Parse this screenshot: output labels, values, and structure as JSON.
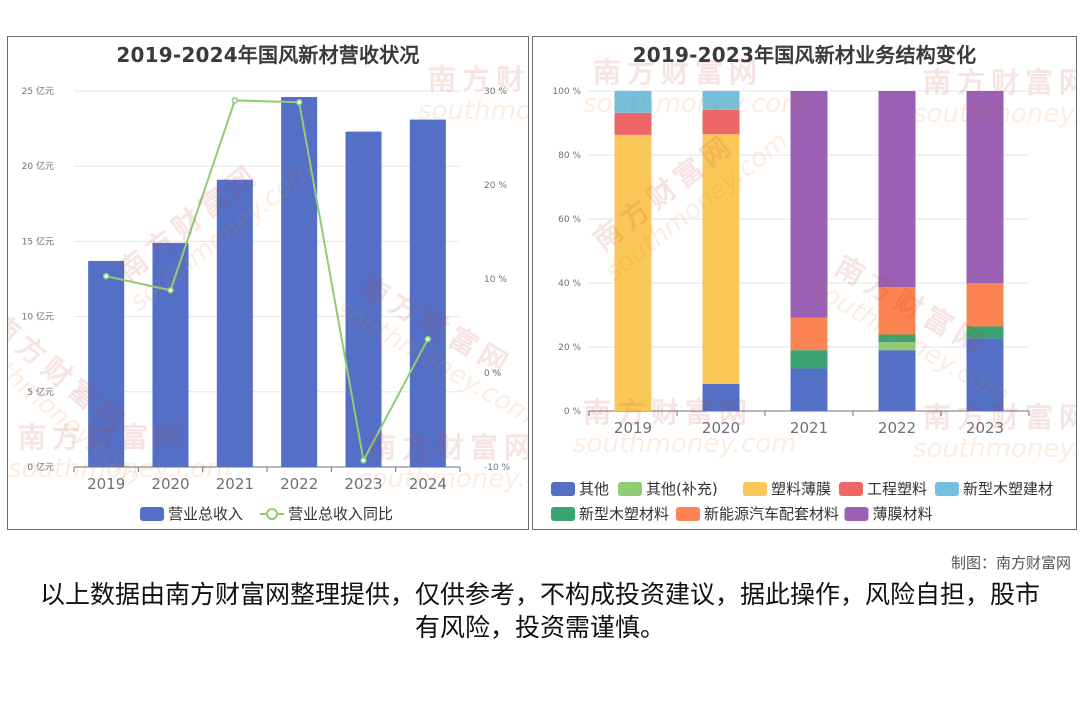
{
  "chart_data": [
    {
      "type": "bar",
      "title": "2019-2024年国风新材营收状况",
      "categories": [
        "2019",
        "2020",
        "2021",
        "2022",
        "2023",
        "2024"
      ],
      "series": [
        {
          "name": "营业总收入",
          "type": "bar",
          "axis": "left",
          "unit": "亿元",
          "values": [
            13.7,
            14.9,
            19.1,
            24.6,
            22.3,
            23.1
          ]
        },
        {
          "name": "营业总收入同比",
          "type": "line",
          "axis": "right",
          "unit": "%",
          "values": [
            10.3,
            8.8,
            29.0,
            28.8,
            -9.3,
            3.6
          ]
        }
      ],
      "ylim_left": [
        0,
        25
      ],
      "ylim_right": [
        -10,
        30
      ],
      "left_ticks": [
        "0 亿元",
        "5 亿元",
        "10 亿元",
        "15 亿元",
        "20 亿元",
        "25 亿元"
      ],
      "right_ticks": [
        "-10 %",
        "0 %",
        "10 %",
        "20 %",
        "30 %"
      ],
      "grid": true,
      "legend_position": "bottom",
      "colors": {
        "bar": "#5470c6",
        "line": "#91cc75"
      }
    },
    {
      "type": "bar",
      "stacked": true,
      "title": "2019-2023年国风新材业务结构变化",
      "categories": [
        "2019",
        "2020",
        "2021",
        "2022",
        "2023"
      ],
      "series": [
        {
          "name": "其他",
          "color": "#5470c6",
          "values": [
            0,
            8.5,
            13.3,
            19.0,
            22.7
          ]
        },
        {
          "name": "其他(补充)",
          "color": "#91cc75",
          "values": [
            0,
            0,
            0,
            2.5,
            0
          ]
        },
        {
          "name": "塑料薄膜",
          "color": "#fac858",
          "values": [
            86.3,
            78.0,
            0,
            0,
            0
          ]
        },
        {
          "name": "工程塑料",
          "color": "#ee6666",
          "values": [
            6.9,
            7.6,
            0,
            0,
            0
          ]
        },
        {
          "name": "新型木塑建材",
          "color": "#73c0de",
          "values": [
            6.8,
            5.9,
            0,
            0,
            0
          ]
        },
        {
          "name": "新型木塑材料",
          "color": "#3ba272",
          "values": [
            0,
            0,
            5.7,
            2.4,
            3.7
          ]
        },
        {
          "name": "新能源汽车配套材料",
          "color": "#fc8452",
          "values": [
            0,
            0,
            10.2,
            14.8,
            13.6
          ]
        },
        {
          "name": "薄膜材料",
          "color": "#9a60b4",
          "values": [
            0,
            0,
            70.8,
            61.3,
            60.0
          ]
        }
      ],
      "ylim": [
        0,
        100
      ],
      "y_ticks": [
        "0 %",
        "20 %",
        "40 %",
        "60 %",
        "80 %",
        "100 %"
      ],
      "grid": true,
      "legend_position": "bottom"
    }
  ],
  "watermark": {
    "brand": "南方财富网",
    "domain": "southmoney.com"
  },
  "credit": "制图：南方财富网",
  "disclaimer": "以上数据由南方财富网整理提供，仅供参考，不构成投资建议，据此操作，风险自担，股市有风险，投资需谨慎。"
}
